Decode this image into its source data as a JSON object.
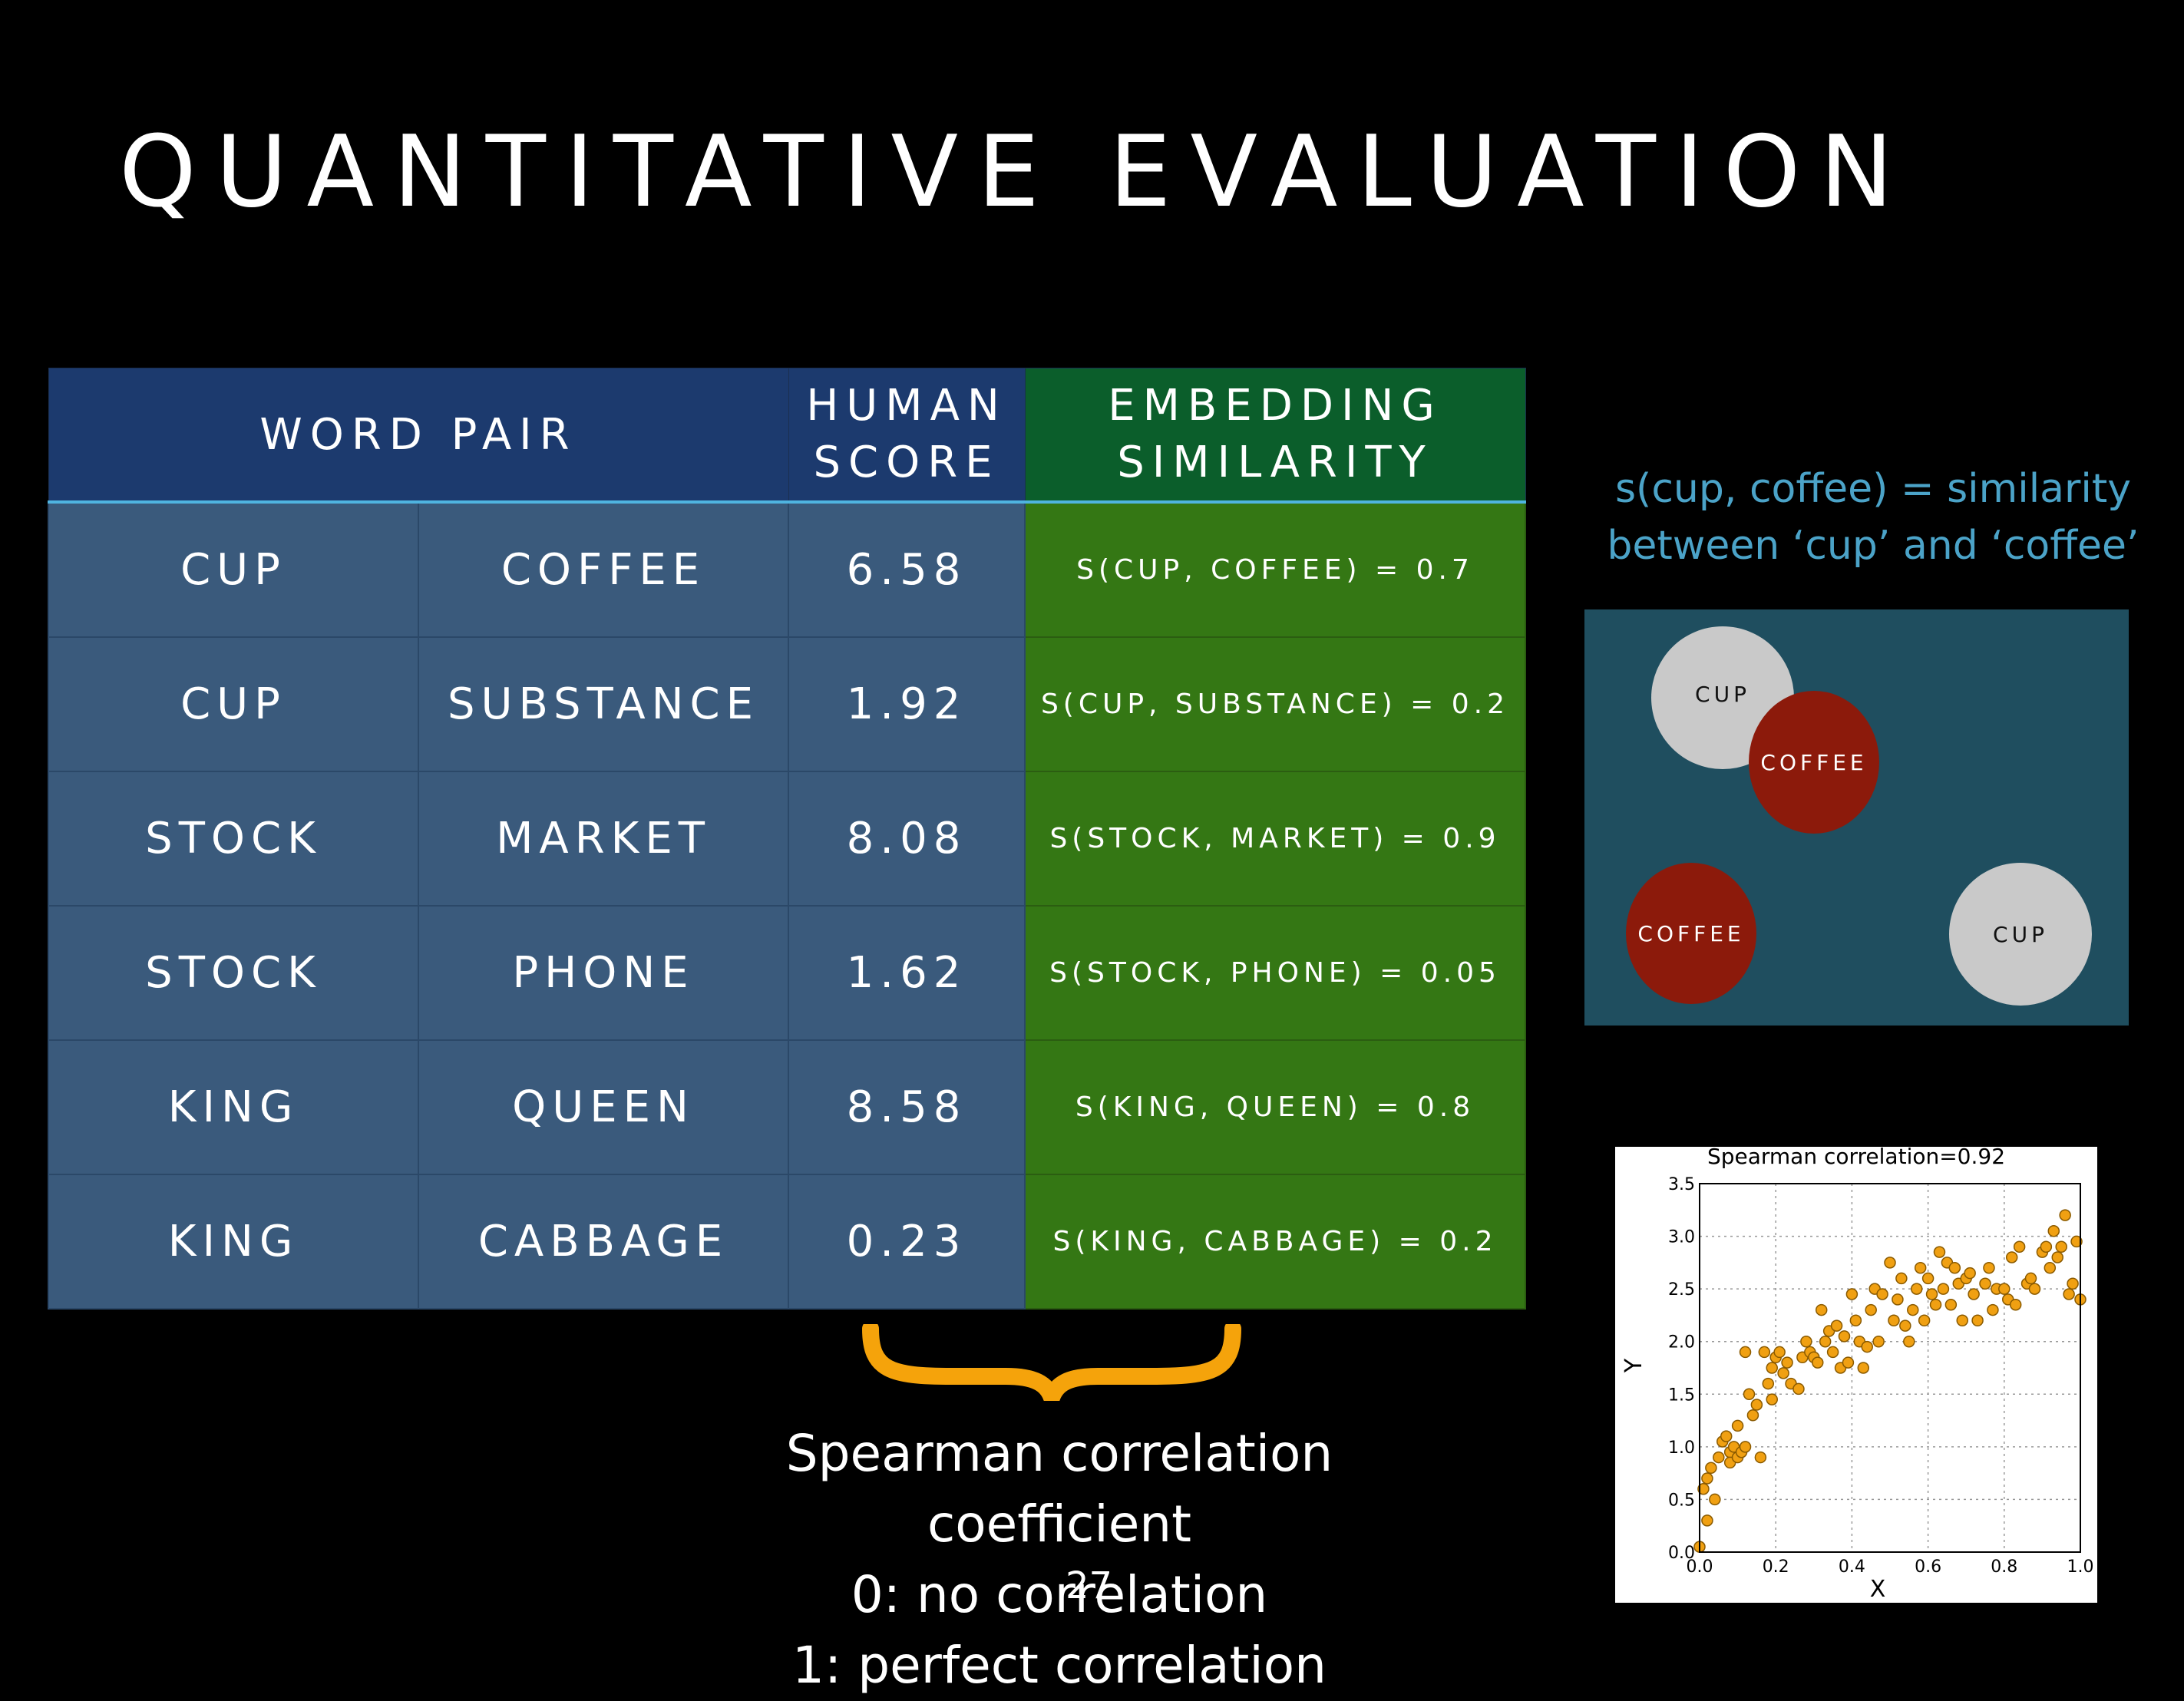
{
  "slide": {
    "title": "QUANTITATIVE EVALUATION",
    "page_number": "27"
  },
  "table": {
    "headers": {
      "word_pair": "WORD PAIR",
      "human_line1": "HUMAN",
      "human_line2": "SCORE",
      "emb_line1": "EMBEDDING",
      "emb_line2": "SIMILARITY"
    },
    "rows": [
      {
        "w1": "CUP",
        "w2": "COFFEE",
        "score": "6.58",
        "sim": "S(CUP, COFFEE) = 0.7"
      },
      {
        "w1": "CUP",
        "w2": "SUBSTANCE",
        "score": "1.92",
        "sim": "S(CUP, SUBSTANCE) = 0.2"
      },
      {
        "w1": "STOCK",
        "w2": "MARKET",
        "score": "8.08",
        "sim": "S(STOCK, MARKET) = 0.9"
      },
      {
        "w1": "STOCK",
        "w2": "PHONE",
        "score": "1.62",
        "sim": "S(STOCK, PHONE) = 0.05"
      },
      {
        "w1": "KING",
        "w2": "QUEEN",
        "score": "8.58",
        "sim": "S(KING, QUEEN) = 0.8"
      },
      {
        "w1": "KING",
        "w2": "CABBAGE",
        "score": "0.23",
        "sim": "S(KING, CABBAGE) = 0.2"
      }
    ]
  },
  "similarity_illustration": {
    "caption_line1": "s(cup, coffee) = similarity",
    "caption_line2": "between ‘cup’ and ‘coffee’",
    "close_pair": {
      "a": "CUP",
      "b": "COFFEE"
    },
    "far_pair": {
      "a": "COFFEE",
      "b": "CUP"
    },
    "colors": {
      "caption": "#4ba3c8",
      "panel": "#1f4e5f",
      "cup": "#c9c9c9",
      "coffee": "#8c1a0b"
    }
  },
  "bottom_text": {
    "line1": "Spearman correlation coefficient",
    "line2": "0: no correlation",
    "line3": "1: perfect correlation"
  },
  "chart_data": {
    "type": "scatter",
    "title": "Spearman correlation=0.92",
    "xlabel": "X",
    "ylabel": "Y",
    "xlim": [
      0.0,
      1.0
    ],
    "ylim": [
      0.0,
      3.5
    ],
    "xticks": [
      "0.0",
      "0.2",
      "0.4",
      "0.6",
      "0.8",
      "1.0"
    ],
    "yticks": [
      "0.0",
      "0.5",
      "1.0",
      "1.5",
      "2.0",
      "2.5",
      "3.0",
      "3.5"
    ],
    "grid": true,
    "marker_color": "#f0a012",
    "x": [
      0.0,
      0.01,
      0.02,
      0.02,
      0.03,
      0.04,
      0.05,
      0.06,
      0.07,
      0.08,
      0.08,
      0.09,
      0.1,
      0.1,
      0.11,
      0.12,
      0.12,
      0.13,
      0.14,
      0.15,
      0.16,
      0.17,
      0.18,
      0.19,
      0.19,
      0.2,
      0.21,
      0.22,
      0.23,
      0.24,
      0.26,
      0.27,
      0.28,
      0.29,
      0.3,
      0.31,
      0.32,
      0.33,
      0.34,
      0.35,
      0.36,
      0.37,
      0.38,
      0.39,
      0.4,
      0.41,
      0.42,
      0.43,
      0.44,
      0.45,
      0.46,
      0.47,
      0.48,
      0.5,
      0.51,
      0.52,
      0.53,
      0.54,
      0.55,
      0.56,
      0.57,
      0.58,
      0.59,
      0.6,
      0.61,
      0.62,
      0.63,
      0.64,
      0.65,
      0.66,
      0.67,
      0.68,
      0.69,
      0.7,
      0.71,
      0.72,
      0.73,
      0.75,
      0.76,
      0.77,
      0.78,
      0.8,
      0.81,
      0.82,
      0.83,
      0.84,
      0.86,
      0.87,
      0.88,
      0.9,
      0.91,
      0.92,
      0.93,
      0.94,
      0.95,
      0.96,
      0.97,
      0.98,
      0.99,
      1.0
    ],
    "y": [
      0.05,
      0.6,
      0.3,
      0.7,
      0.8,
      0.5,
      0.9,
      1.05,
      1.1,
      0.95,
      0.85,
      1.0,
      0.9,
      1.2,
      0.95,
      1.0,
      1.9,
      1.5,
      1.3,
      1.4,
      0.9,
      1.9,
      1.6,
      1.45,
      1.75,
      1.85,
      1.9,
      1.7,
      1.8,
      1.6,
      1.55,
      1.85,
      2.0,
      1.9,
      1.85,
      1.8,
      2.3,
      2.0,
      2.1,
      1.9,
      2.15,
      1.75,
      2.05,
      1.8,
      2.45,
      2.2,
      2.0,
      1.75,
      1.95,
      2.3,
      2.5,
      2.0,
      2.45,
      2.75,
      2.2,
      2.4,
      2.6,
      2.15,
      2.0,
      2.3,
      2.5,
      2.7,
      2.2,
      2.6,
      2.45,
      2.35,
      2.85,
      2.5,
      2.75,
      2.35,
      2.7,
      2.55,
      2.2,
      2.6,
      2.65,
      2.45,
      2.2,
      2.55,
      2.7,
      2.3,
      2.5,
      2.5,
      2.4,
      2.8,
      2.35,
      2.9,
      2.55,
      2.6,
      2.5,
      2.85,
      2.9,
      2.7,
      3.05,
      2.8,
      2.9,
      3.2,
      2.45,
      2.55,
      2.95,
      2.4
    ]
  }
}
